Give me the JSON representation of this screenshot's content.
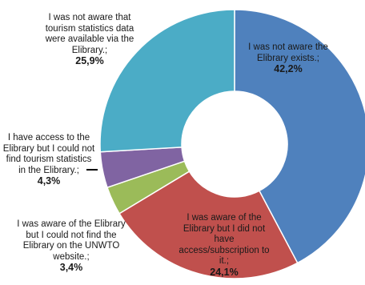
{
  "chart_data": {
    "type": "pie",
    "variant": "donut",
    "slices": [
      {
        "label": "I was not aware the Elibrary exists.;",
        "value": 42.2,
        "value_label": "42,2%",
        "color": "#4f81bd"
      },
      {
        "label": "I was aware of the Elibrary but I did not have access/subscription to it.;",
        "value": 24.1,
        "value_label": "24,1%",
        "color": "#c0504d"
      },
      {
        "label": "I was aware of the Elibrary but I could not find the Elibrary on the UNWTO website.;",
        "value": 3.4,
        "value_label": "3,4%",
        "color": "#9bbb59"
      },
      {
        "label": "I have access to the Elibrary but I could not find tourism statistics in the Elibrary.;",
        "value": 4.3,
        "value_label": "4,3%",
        "color": "#8064a2"
      },
      {
        "label": "I was not aware that tourism statistics data were available via the Elibrary.;",
        "value": 25.9,
        "value_label": "25,9%",
        "color": "#4bacc6"
      }
    ]
  }
}
